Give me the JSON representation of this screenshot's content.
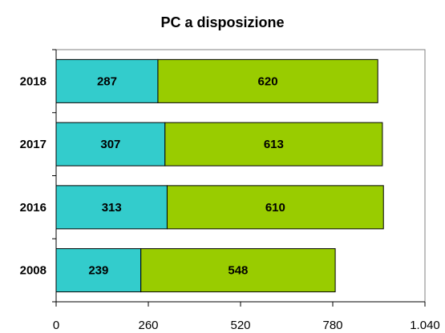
{
  "chart_data": {
    "type": "bar",
    "orientation": "horizontal",
    "stacked": true,
    "title": "PC a disposizione",
    "xlabel": "",
    "ylabel": "",
    "categories": [
      "2018",
      "2017",
      "2016",
      "2008"
    ],
    "series": [
      {
        "values": [
          287,
          307,
          313,
          239
        ],
        "color": "#33CCCC"
      },
      {
        "values": [
          620,
          613,
          610,
          548
        ],
        "color": "#99CC00"
      }
    ],
    "xlim": [
      0,
      1040
    ],
    "x_ticks": [
      0,
      260,
      520,
      780,
      1040
    ],
    "x_tick_labels": [
      "0",
      "260",
      "520",
      "780",
      "1.040"
    ],
    "grid": false,
    "legend": "none"
  }
}
